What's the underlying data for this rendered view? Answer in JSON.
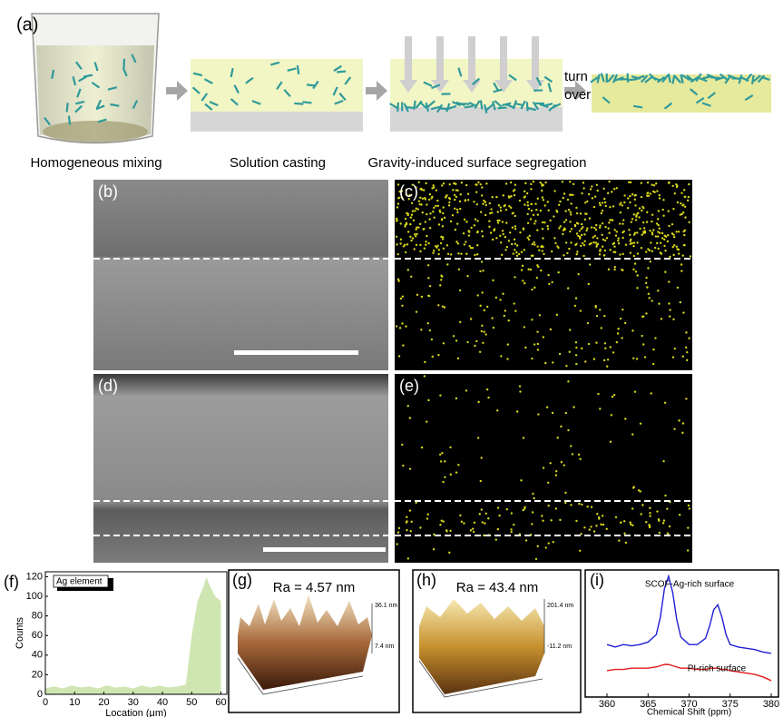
{
  "panel_labels": [
    "(a)",
    "(b)",
    "(c)",
    "(d)",
    "(e)",
    "(f)",
    "(g)",
    "(h)",
    "(i)"
  ],
  "schematic": {
    "captions": [
      "Homogeneous mixing",
      "Solution casting",
      "Gravity-induced surface segregation"
    ],
    "turn_over": [
      "turn",
      "over"
    ]
  },
  "panel_f": {
    "type": "area",
    "legend": "Ag element",
    "xlabel": "Location (μm)",
    "ylabel": "Counts",
    "color": "#cfe6b3",
    "x": [
      0,
      3,
      6,
      9,
      12,
      15,
      18,
      21,
      24,
      27,
      30,
      33,
      36,
      39,
      42,
      45,
      48,
      50,
      52,
      54,
      55,
      56,
      58,
      60
    ],
    "values": [
      6,
      8,
      6,
      9,
      7,
      8,
      6,
      9,
      7,
      8,
      6,
      9,
      7,
      9,
      7,
      8,
      10,
      60,
      95,
      110,
      120,
      112,
      100,
      95
    ],
    "xlim": [
      0,
      62
    ],
    "ylim": [
      0,
      125
    ],
    "xticks": [
      0,
      10,
      20,
      30,
      40,
      50,
      60
    ],
    "yticks": [
      0,
      20,
      40,
      60,
      80,
      100,
      120
    ]
  },
  "panel_g": {
    "title": "Ra = 4.57 nm",
    "z_labels": [
      "36.1 nm",
      "7.4 nm"
    ]
  },
  "panel_h": {
    "title": "Ra = 43.4 nm",
    "z_labels": [
      "201.4 nm",
      "-11.2 nm"
    ]
  },
  "panel_i": {
    "type": "line",
    "xlabel": "Chemical Shift (ppm)",
    "x": [
      360,
      361,
      362,
      363,
      364,
      365,
      366,
      366.5,
      367,
      367.5,
      368,
      368.5,
      369,
      370,
      371,
      372,
      372.5,
      373,
      373.5,
      374,
      374.5,
      375,
      376,
      377,
      378,
      379,
      380
    ],
    "series": [
      {
        "name": "SCOF-Ag-rich surface",
        "color": "#1f1fd6",
        "values": [
          40,
          38,
          40,
          39,
          40,
          42,
          48,
          62,
          85,
          95,
          82,
          60,
          46,
          40,
          40,
          45,
          55,
          68,
          72,
          62,
          48,
          40,
          38,
          37,
          36,
          34,
          33
        ]
      },
      {
        "name": "PI-rich surface",
        "color": "#e01b1b",
        "values": [
          19,
          20,
          20,
          21,
          21,
          21,
          22,
          23,
          24,
          24,
          23,
          22,
          21,
          21,
          20,
          20,
          21,
          21,
          21,
          20,
          20,
          19,
          18,
          17,
          16,
          14,
          11
        ]
      }
    ],
    "xlim": [
      360,
      380
    ],
    "ylim": [
      0,
      100
    ],
    "xticks": [
      360,
      365,
      370,
      375,
      380
    ]
  }
}
